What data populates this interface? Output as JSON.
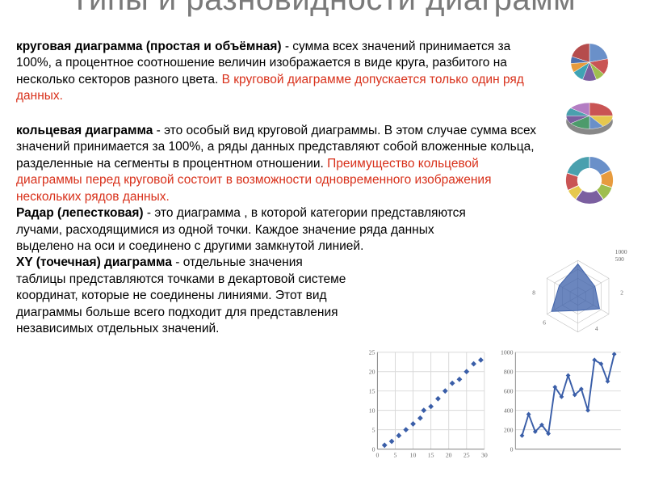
{
  "title": "Типы и разновидности диаграмм",
  "para1": {
    "term": "круговая диаграмма (простая и объёмная)",
    "body": " - сумма всех значений принимается за 100%, а процентное соотношение величин изображается в виде круга, разбитого на несколько секторов разного цвета. ",
    "red": "В круговой диаграмме допускается только один ряд данных."
  },
  "para2": {
    "term": "кольцевая диаграмма",
    "body": " - это особый вид круговой диаграммы. В этом случае сумма всех значений принимается за 100%, а ряды данных представляют собой вложенные кольца, разделенные на сегменты в процентном отношении. ",
    "red": "Преимущество кольцевой диаграммы перед круговой состоит в возможности одновременного изображения нескольких рядов данных."
  },
  "para3": {
    "term": "Радар (лепестковая)",
    "body": " - это диаграмма , в которой категории представляются лучами, расходящимися из одной точки. Каждое значение ряда данных выделено на оси и соединено с другими замкнутой линией."
  },
  "para4": {
    "term": "XY (точечная) диаграмма",
    "body": " - отдельные значения таблицы представляются точками в декартовой системе координат, которые не соединены линиями. Этот вид диаграммы больше всего подходит для представления независимых отдельных значений."
  },
  "pie1": {
    "type": "pie",
    "slices": [
      22,
      14,
      8,
      12,
      10,
      8,
      6,
      20
    ],
    "colors": [
      "#6a90c9",
      "#c95454",
      "#9fbe4f",
      "#7b5fa0",
      "#3fa3b4",
      "#e79b3e",
      "#4d6fae",
      "#b54c4c"
    ]
  },
  "pie3d": {
    "type": "pie3d",
    "slices": [
      25,
      15,
      10,
      15,
      10,
      10,
      15
    ],
    "colors": [
      "#c95454",
      "#e6c84e",
      "#6a90c9",
      "#4d9b6b",
      "#7b5fa0",
      "#4aa0ae",
      "#b37dc3"
    ]
  },
  "donut": {
    "type": "donut",
    "slices": [
      18,
      12,
      10,
      20,
      8,
      12,
      20
    ],
    "colors": [
      "#6a90c9",
      "#e79b3e",
      "#9fbe4f",
      "#7b5fa0",
      "#e6c84e",
      "#c95454",
      "#4aa0ae"
    ],
    "inner": 0.5
  },
  "radar": {
    "type": "radar",
    "axes": 6,
    "ticks": [
      "2",
      "4",
      "6",
      "8",
      "1000",
      "500"
    ],
    "grid_color": "#bdbdbd",
    "fill_color": "#3a5ea8",
    "fill_opacity": 0.75,
    "values": [
      0.9,
      0.55,
      0.7,
      0.4,
      0.85,
      0.6
    ]
  },
  "scatter": {
    "type": "scatter",
    "xlim": [
      0,
      30
    ],
    "ylim": [
      0,
      25
    ],
    "xticks": [
      0,
      5,
      10,
      15,
      20,
      25,
      30
    ],
    "yticks": [
      0,
      5,
      10,
      15,
      20,
      25
    ],
    "grid_color": "#d9d9d9",
    "marker_color": "#3a5ea8",
    "marker": "diamond",
    "points": [
      [
        2,
        1
      ],
      [
        4,
        2
      ],
      [
        6,
        3.5
      ],
      [
        8,
        5
      ],
      [
        10,
        6.5
      ],
      [
        12,
        8
      ],
      [
        13,
        10
      ],
      [
        15,
        11
      ],
      [
        17,
        13
      ],
      [
        19,
        15
      ],
      [
        21,
        17
      ],
      [
        23,
        18
      ],
      [
        25,
        20
      ],
      [
        27,
        22
      ],
      [
        29,
        23
      ]
    ]
  },
  "line": {
    "type": "line",
    "xlim": [
      0,
      16
    ],
    "ylim": [
      0,
      1000
    ],
    "yticks": [
      0,
      200,
      400,
      600,
      800,
      1000
    ],
    "grid_color": "#d9d9d9",
    "line_color": "#3a5ea8",
    "line_width": 2,
    "marker": "diamond",
    "points": [
      [
        1,
        140
      ],
      [
        2,
        360
      ],
      [
        3,
        180
      ],
      [
        4,
        250
      ],
      [
        5,
        160
      ],
      [
        6,
        640
      ],
      [
        7,
        540
      ],
      [
        8,
        760
      ],
      [
        9,
        560
      ],
      [
        10,
        620
      ],
      [
        11,
        400
      ],
      [
        12,
        920
      ],
      [
        13,
        880
      ],
      [
        14,
        700
      ],
      [
        15,
        980
      ]
    ]
  },
  "colors": {
    "title": "#7a7a7a",
    "text": "#000000",
    "accent": "#d8301a",
    "bg": "#ffffff"
  }
}
